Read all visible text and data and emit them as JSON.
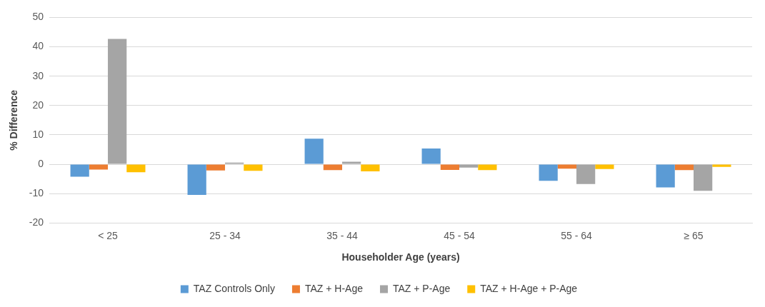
{
  "chart_data": {
    "type": "bar",
    "xlabel": "Householder Age (years)",
    "ylabel": "% Difference",
    "categories": [
      "< 25",
      "25 - 34",
      "35 - 44",
      "45 - 54",
      "55 - 64",
      "≥ 65"
    ],
    "series": [
      {
        "name": "TAZ Controls Only",
        "color": "#5b9bd5",
        "values": [
          -4.2,
          -10.4,
          8.7,
          5.4,
          -5.6,
          -7.9
        ]
      },
      {
        "name": "TAZ + H-Age",
        "color": "#ed7d31",
        "values": [
          -1.8,
          -2.1,
          -2.0,
          -1.9,
          -1.5,
          -2.0
        ]
      },
      {
        "name": "TAZ + P-Age",
        "color": "#a5a5a5",
        "values": [
          42.7,
          0.6,
          0.9,
          -1.1,
          -6.7,
          -9.0
        ]
      },
      {
        "name": "TAZ + H-Age + P-Age",
        "color": "#ffc000",
        "values": [
          -2.7,
          -2.2,
          -2.4,
          -2.0,
          -1.6,
          -0.9
        ]
      }
    ],
    "ylim": [
      -20,
      50
    ],
    "yticks": [
      -20,
      -10,
      0,
      10,
      20,
      30,
      40,
      50
    ],
    "grid": "y",
    "legend": "bottom"
  }
}
